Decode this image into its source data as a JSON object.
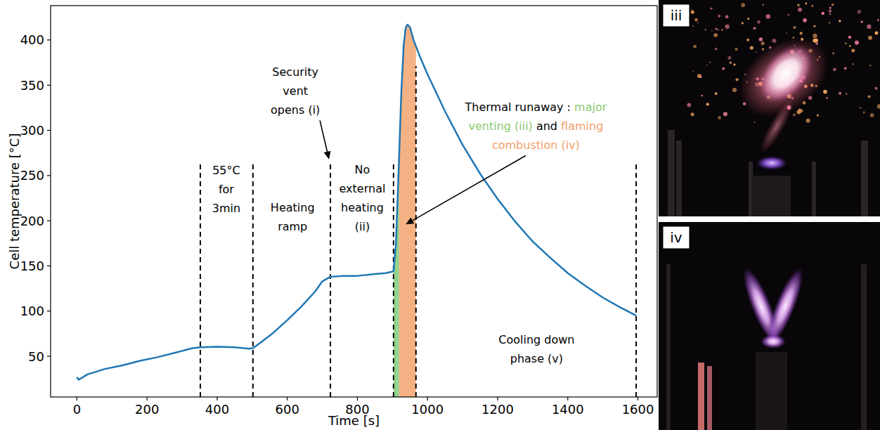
{
  "chart_data": {
    "type": "line",
    "xlabel": "Time [s]",
    "ylabel": "Cell temperature [°C]",
    "xlim": [
      -75,
      1655
    ],
    "ylim": [
      5,
      438
    ],
    "xticks": [
      0,
      200,
      400,
      600,
      800,
      1000,
      1200,
      1400,
      1600
    ],
    "yticks": [
      50,
      100,
      150,
      200,
      250,
      300,
      350,
      400
    ],
    "grid": false,
    "x": [
      0,
      5,
      30,
      80,
      130,
      180,
      230,
      280,
      330,
      352,
      400,
      450,
      490,
      502,
      520,
      560,
      600,
      640,
      680,
      700,
      723,
      760,
      800,
      850,
      880,
      903,
      910,
      918,
      925,
      932,
      938,
      943,
      950,
      960,
      980,
      1000,
      1050,
      1100,
      1150,
      1200,
      1250,
      1300,
      1350,
      1400,
      1450,
      1500,
      1550,
      1595
    ],
    "series": [
      {
        "color": "#1f77b4",
        "line_style": "solid",
        "values": [
          27,
          24,
          30,
          36,
          40,
          45,
          49,
          54,
          59,
          60,
          60.5,
          60,
          58.5,
          59,
          64,
          76,
          90,
          105,
          122,
          133,
          138,
          139,
          139,
          141,
          142,
          144,
          175,
          260,
          340,
          395,
          414,
          417,
          414,
          400,
          380,
          362,
          321,
          284,
          252,
          224,
          199,
          177,
          159,
          142,
          128,
          115,
          104,
          95
        ]
      }
    ],
    "phase_boundaries": [
      {
        "x": 352,
        "y": 265
      },
      {
        "x": 502,
        "y": 265
      },
      {
        "x": 723,
        "y": 265
      },
      {
        "x": 903,
        "y": 265
      },
      {
        "x": 967,
        "y": 371
      },
      {
        "x": 1595,
        "y": 265
      }
    ],
    "regions": [
      {
        "x0": 903,
        "x1": 919,
        "color": "#93d48e"
      },
      {
        "x0": 919,
        "x1": 967,
        "color": "#f4b183"
      }
    ],
    "annotations": [
      {
        "lines": [
          [
            {
              "text": "55°C"
            }
          ],
          [
            {
              "text": "for"
            }
          ],
          [
            {
              "text": "3min"
            }
          ]
        ],
        "x": 426,
        "y": 235
      },
      {
        "lines": [
          [
            {
              "text": "Heating"
            }
          ],
          [
            {
              "text": "ramp"
            }
          ]
        ],
        "x": 615,
        "y": 204
      },
      {
        "lines": [
          [
            {
              "text": "Security"
            }
          ],
          [
            {
              "text": "vent"
            }
          ],
          [
            {
              "text": "opens (i)"
            }
          ]
        ],
        "x": 623,
        "y": 344,
        "arrow_from": {
          "x": 693,
          "y": 311
        },
        "arrow_to": {
          "x": 719,
          "y": 268
        }
      },
      {
        "lines": [
          [
            {
              "text": "No"
            }
          ],
          [
            {
              "text": "external"
            }
          ],
          [
            {
              "text": "heating"
            }
          ],
          [
            {
              "text": "(ii)"
            }
          ]
        ],
        "x": 814,
        "y": 225
      },
      {
        "lines": [
          [
            {
              "text": "Thermal runaway : "
            },
            {
              "text": "major",
              "color": "#8cc870"
            }
          ],
          [
            {
              "text": "venting (iii)",
              "color": "#8cc870"
            },
            {
              "text": " and "
            },
            {
              "text": "flaming",
              "color": "#f0a06a"
            }
          ],
          [
            {
              "text": "combustion (iv)",
              "color": "#f0a06a"
            }
          ]
        ],
        "x": 1309,
        "y": 305,
        "arrow_from": {
          "x": 1280,
          "y": 272
        },
        "arrow_to": {
          "x": 938,
          "y": 196
        }
      },
      {
        "lines": [
          [
            {
              "text": "Cooling down"
            }
          ],
          [
            {
              "text": "phase (v)"
            }
          ]
        ],
        "x": 1311,
        "y": 58
      }
    ]
  },
  "photos": [
    {
      "label": "iii"
    },
    {
      "label": "iv"
    }
  ]
}
